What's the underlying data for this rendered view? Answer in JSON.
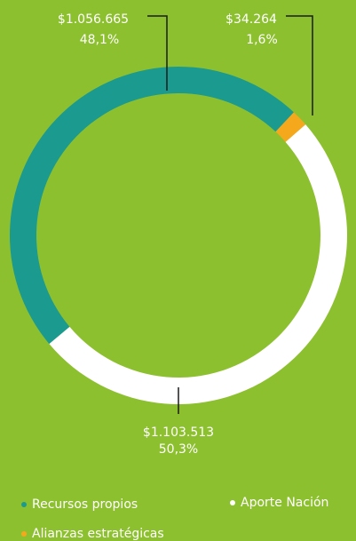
{
  "chart_data": {
    "type": "donut",
    "categories": [
      "Recursos propios",
      "Alianzas estratégicas",
      "Aporte Nación"
    ],
    "values": [
      1056665,
      34264,
      1103513
    ],
    "value_labels": [
      "$1.056.665",
      "$34.264",
      "$1.103.513"
    ],
    "percents": [
      48.1,
      1.6,
      50.3
    ],
    "percent_labels": [
      "48,1%",
      "1,6%",
      "50,3%"
    ],
    "colors": [
      "#1b9a8f",
      "#f6a81d",
      "#ffffff"
    ],
    "background": "#8dc02f"
  }
}
